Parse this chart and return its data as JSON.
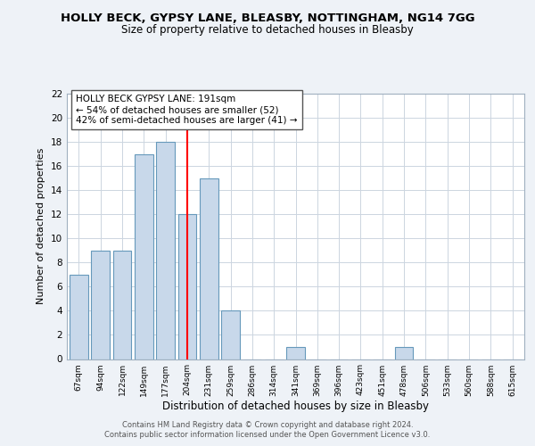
{
  "title": "HOLLY BECK, GYPSY LANE, BLEASBY, NOTTINGHAM, NG14 7GG",
  "subtitle": "Size of property relative to detached houses in Bleasby",
  "xlabel": "Distribution of detached houses by size in Bleasby",
  "ylabel": "Number of detached properties",
  "bar_labels": [
    "67sqm",
    "94sqm",
    "122sqm",
    "149sqm",
    "177sqm",
    "204sqm",
    "231sqm",
    "259sqm",
    "286sqm",
    "314sqm",
    "341sqm",
    "369sqm",
    "396sqm",
    "423sqm",
    "451sqm",
    "478sqm",
    "506sqm",
    "533sqm",
    "560sqm",
    "588sqm",
    "615sqm"
  ],
  "bar_values": [
    7,
    9,
    9,
    17,
    18,
    12,
    15,
    4,
    0,
    0,
    1,
    0,
    0,
    0,
    0,
    1,
    0,
    0,
    0,
    0,
    0
  ],
  "bar_color": "#c8d8ea",
  "bar_edge_color": "#6699bb",
  "vline_pos": 5,
  "vline_color": "red",
  "annotation_box_text": "HOLLY BECK GYPSY LANE: 191sqm\n← 54% of detached houses are smaller (52)\n42% of semi-detached houses are larger (41) →",
  "ylim": [
    0,
    22
  ],
  "yticks": [
    0,
    2,
    4,
    6,
    8,
    10,
    12,
    14,
    16,
    18,
    20,
    22
  ],
  "footer_line1": "Contains HM Land Registry data © Crown copyright and database right 2024.",
  "footer_line2": "Contains public sector information licensed under the Open Government Licence v3.0.",
  "bg_color": "#eef2f7",
  "plot_bg_color": "#ffffff",
  "grid_color": "#ccd5e0"
}
